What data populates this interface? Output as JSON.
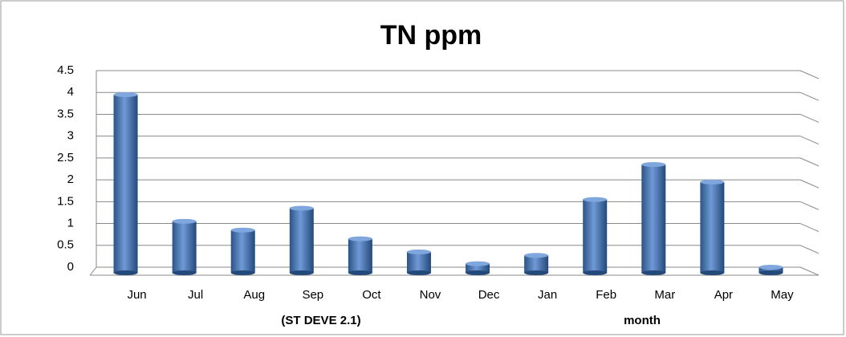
{
  "chart_data": {
    "type": "bar",
    "title": "TN ppm",
    "categories": [
      "Jun",
      "Jul",
      "Aug",
      "Sep",
      "Oct",
      "Nov",
      "Dec",
      "Jan",
      "Feb",
      "Mar",
      "Apr",
      "May"
    ],
    "values": [
      3.95,
      1.05,
      0.85,
      1.35,
      0.65,
      0.35,
      0.08,
      0.27,
      1.55,
      2.35,
      1.95,
      0
    ],
    "color": "#4a7ebb",
    "ylim": [
      0,
      4.5
    ],
    "yticks": [
      0,
      0.5,
      1,
      1.5,
      2,
      2.5,
      3,
      3.5,
      4,
      4.5
    ],
    "grid": true,
    "annotation": "(ST DEVE 2.1)",
    "x_label": "month"
  }
}
